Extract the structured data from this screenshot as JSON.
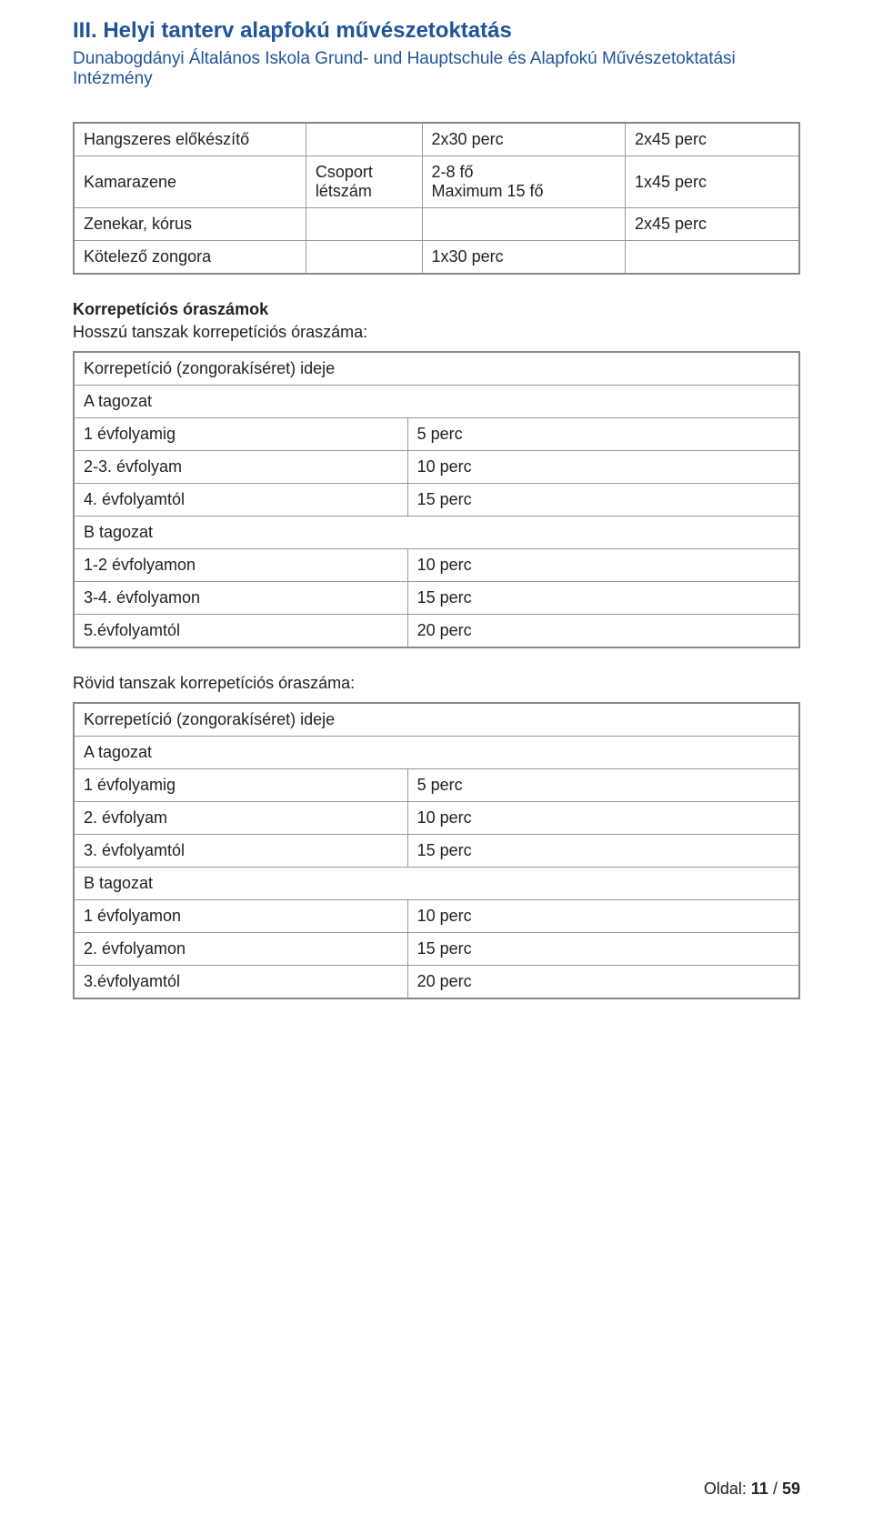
{
  "header": {
    "title": "III. Helyi tanterv alapfokú művészetoktatás",
    "subtitle": "Dunabogdányi Általános Iskola Grund- und Hauptschule és Alapfokú Művészetoktatási Intézmény"
  },
  "table1": {
    "rows": [
      {
        "c1": "Hangszeres előkészítő",
        "c2": "",
        "c3": "2x30 perc",
        "c4": "2x45 perc"
      },
      {
        "c1": "Kamarazene",
        "c2": "Csoport létszám",
        "c3": "2-8 fő\nMaximum 15 fő",
        "c4": "1x45 perc"
      },
      {
        "c1": "Zenekar, kórus",
        "c2": "",
        "c3": "",
        "c4": "2x45 perc"
      },
      {
        "c1": "Kötelező zongora",
        "c2": "",
        "c3": "1x30 perc",
        "c4": ""
      }
    ],
    "col_widths": [
      "32%",
      "16%",
      "28%",
      "24%"
    ]
  },
  "section2": {
    "heading": "Korrepetíciós óraszámok",
    "sub": "Hosszú tanszak korrepetíciós óraszáma:"
  },
  "table2": {
    "rows": [
      {
        "c1": "Korrepetíció (zongorakíséret) ideje",
        "span": true
      },
      {
        "c1": "A tagozat",
        "span": true
      },
      {
        "c1": "1 évfolyamig",
        "c2": "5 perc"
      },
      {
        "c1": "2-3. évfolyam",
        "c2": "10 perc"
      },
      {
        "c1": "4. évfolyamtól",
        "c2": "15 perc"
      },
      {
        "c1": "B tagozat",
        "span": true
      },
      {
        "c1": "1-2 évfolyamon",
        "c2": "10 perc"
      },
      {
        "c1": "3-4. évfolyamon",
        "c2": "15 perc"
      },
      {
        "c1": "5.évfolyamtól",
        "c2": "20 perc"
      }
    ],
    "col_widths": [
      "46%",
      "54%"
    ]
  },
  "section3": {
    "sub": "Rövid tanszak korrepetíciós óraszáma:"
  },
  "table3": {
    "rows": [
      {
        "c1": "Korrepetíció (zongorakíséret) ideje",
        "span": true
      },
      {
        "c1": "A tagozat",
        "span": true
      },
      {
        "c1": "1 évfolyamig",
        "c2": "5 perc"
      },
      {
        "c1": "2. évfolyam",
        "c2": "10 perc"
      },
      {
        "c1": "3. évfolyamtól",
        "c2": "15 perc"
      },
      {
        "c1": "B tagozat",
        "span": true
      },
      {
        "c1": "1 évfolyamon",
        "c2": "10 perc"
      },
      {
        "c1": "2. évfolyamon",
        "c2": "15 perc"
      },
      {
        "c1": "3.évfolyamtól",
        "c2": "20 perc"
      }
    ],
    "col_widths": [
      "46%",
      "54%"
    ]
  },
  "footer": {
    "label": "Oldal:",
    "page": "11",
    "sep": "/",
    "total": "59"
  }
}
